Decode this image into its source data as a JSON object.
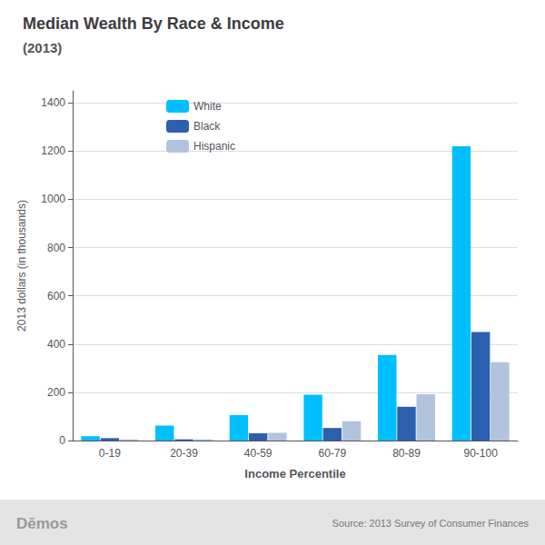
{
  "chart_data": {
    "type": "bar",
    "title": "Median Wealth By Race & Income",
    "subtitle": "(2013)",
    "xlabel": "Income Percentile",
    "ylabel": "2013 dollars (in thousands)",
    "categories": [
      "0-19",
      "20-39",
      "40-59",
      "60-79",
      "80-89",
      "90-100"
    ],
    "series": [
      {
        "name": "White",
        "color": "#00BFFF",
        "values": [
          18,
          62,
          105,
          190,
          355,
          1220
        ]
      },
      {
        "name": "Black",
        "color": "#2B60AE",
        "values": [
          10,
          5,
          30,
          52,
          140,
          450
        ]
      },
      {
        "name": "Hispanic",
        "color": "#B0C4DE",
        "values": [
          5,
          5,
          32,
          80,
          192,
          325
        ]
      }
    ],
    "ylim": [
      0,
      1450
    ],
    "yticks": [
      0,
      200,
      400,
      600,
      800,
      1000,
      1200,
      1400
    ],
    "grid": true,
    "legend": "upper left",
    "annotations": [
      "Dēmos",
      "Source: 2013 Survey of Consumer Finances"
    ]
  }
}
